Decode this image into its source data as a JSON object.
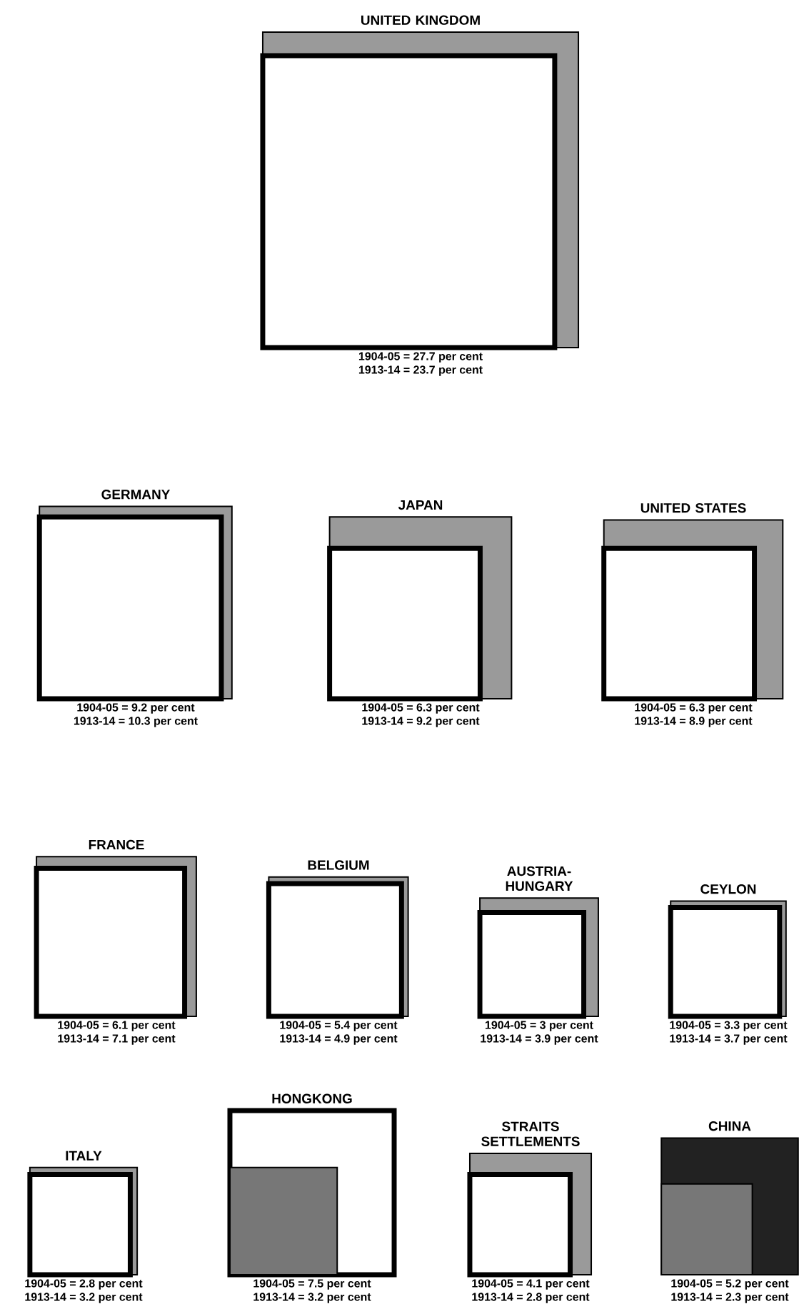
{
  "chart_data": [
    {
      "type": "other",
      "title": "UNITED KINGDOM",
      "categories": [
        "1904-05",
        "1913-14"
      ],
      "values": [
        27.7,
        23.7
      ],
      "value_labels": [
        "= 27.7 per cent",
        "= 23.7 per cent"
      ],
      "colors": [
        "#9a9a9a",
        "#ffffff"
      ]
    },
    {
      "type": "other",
      "title": "GERMANY",
      "categories": [
        "1904-05",
        "1913-14"
      ],
      "values": [
        9.2,
        10.3
      ],
      "value_labels": [
        "= 9.2 per cent",
        "= 10.3 per cent"
      ],
      "colors": [
        "#ffffff",
        "#9a9a9a"
      ]
    },
    {
      "type": "other",
      "title": "JAPAN",
      "categories": [
        "1904-05",
        "1913-14"
      ],
      "values": [
        6.3,
        9.2
      ],
      "value_labels": [
        "= 6.3 per cent",
        "= 9.2 per cent"
      ],
      "colors": [
        "#ffffff",
        "#9a9a9a"
      ]
    },
    {
      "type": "other",
      "title": "UNITED STATES",
      "categories": [
        "1904-05",
        "1913-14"
      ],
      "values": [
        6.3,
        8.9
      ],
      "value_labels": [
        "= 6.3 per cent",
        "= 8.9 per cent"
      ],
      "colors": [
        "#ffffff",
        "#9a9a9a"
      ]
    },
    {
      "type": "other",
      "title": "FRANCE",
      "categories": [
        "1904-05",
        "1913-14"
      ],
      "values": [
        6.1,
        7.1
      ],
      "value_labels": [
        "= 6.1 per cent",
        "= 7.1 per cent"
      ],
      "colors": [
        "#ffffff",
        "#9a9a9a"
      ]
    },
    {
      "type": "other",
      "title": "BELGIUM",
      "categories": [
        "1904-05",
        "1913-14"
      ],
      "values": [
        5.4,
        4.9
      ],
      "value_labels": [
        "= 5.4 per cent",
        "= 4.9 per cent"
      ],
      "colors": [
        "#9a9a9a",
        "#ffffff"
      ]
    },
    {
      "type": "other",
      "title": "AUSTRIA-HUNGARY",
      "categories": [
        "1904-05",
        "1913-14"
      ],
      "values": [
        3,
        3.9
      ],
      "value_labels": [
        "= 3 per cent",
        "= 3.9 per cent"
      ],
      "colors": [
        "#ffffff",
        "#9a9a9a"
      ]
    },
    {
      "type": "other",
      "title": "CEYLON",
      "categories": [
        "1904-05",
        "1913-14"
      ],
      "values": [
        3.3,
        3.7
      ],
      "value_labels": [
        "= 3.3 per cent",
        "= 3.7 per cent"
      ],
      "colors": [
        "#ffffff",
        "#9a9a9a"
      ]
    },
    {
      "type": "other",
      "title": "ITALY",
      "categories": [
        "1904-05",
        "1913-14"
      ],
      "values": [
        2.8,
        3.2
      ],
      "value_labels": [
        "= 2.8 per cent",
        "= 3.2 per cent"
      ],
      "colors": [
        "#ffffff",
        "#9a9a9a"
      ]
    },
    {
      "type": "other",
      "title": "HONGKONG",
      "categories": [
        "1904-05",
        "1913-14"
      ],
      "values": [
        7.5,
        3.2
      ],
      "value_labels": [
        "= 7.5 per cent",
        "= 3.2 per cent"
      ],
      "colors": [
        "#ffffff",
        "#777777"
      ]
    },
    {
      "type": "other",
      "title": "STRAITS SETTLEMENTS",
      "categories": [
        "1904-05",
        "1913-14"
      ],
      "values": [
        4.1,
        2.8
      ],
      "value_labels": [
        "= 4.1 per cent",
        "= 2.8 per cent"
      ],
      "colors": [
        "#9a9a9a",
        "#ffffff"
      ]
    },
    {
      "type": "other",
      "title": "CHINA",
      "categories": [
        "1904-05",
        "1913-14"
      ],
      "values": [
        5.2,
        2.3
      ],
      "value_labels": [
        "= 5.2 per cent",
        "= 2.3 per cent"
      ],
      "colors": [
        "#222222",
        "#777777"
      ]
    }
  ]
}
